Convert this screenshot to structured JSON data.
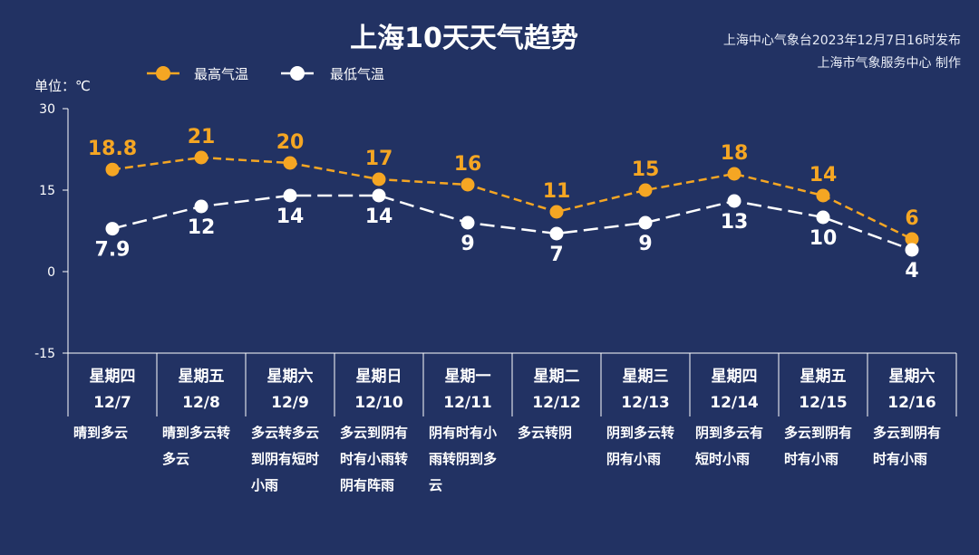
{
  "title": "上海10天天气趋势",
  "publisher_line1": "上海中心气象台2023年12月7日16时发布",
  "publisher_line2": "上海市气象服务中心 制作",
  "unit_label": "单位：℃",
  "colors": {
    "background": "#223263",
    "high": "#f5a623",
    "low": "#ffffff",
    "axis": "#ffffff"
  },
  "chart_data": {
    "type": "line",
    "categories": [
      {
        "weekday": "星期四",
        "date": "12/7",
        "weather": [
          "晴到多云"
        ]
      },
      {
        "weekday": "星期五",
        "date": "12/8",
        "weather": [
          "晴到多云转",
          "多云"
        ]
      },
      {
        "weekday": "星期六",
        "date": "12/9",
        "weather": [
          "多云转多云",
          "到阴有短时",
          "小雨"
        ]
      },
      {
        "weekday": "星期日",
        "date": "12/10",
        "weather": [
          "多云到阴有",
          "时有小雨转",
          "阴有阵雨"
        ]
      },
      {
        "weekday": "星期一",
        "date": "12/11",
        "weather": [
          "阴有时有小",
          "雨转阴到多",
          "云"
        ]
      },
      {
        "weekday": "星期二",
        "date": "12/12",
        "weather": [
          "多云转阴"
        ]
      },
      {
        "weekday": "星期三",
        "date": "12/13",
        "weather": [
          "阴到多云转",
          "阴有小雨"
        ]
      },
      {
        "weekday": "星期四",
        "date": "12/14",
        "weather": [
          "阴到多云有",
          "短时小雨"
        ]
      },
      {
        "weekday": "星期五",
        "date": "12/15",
        "weather": [
          "多云到阴有",
          "时有小雨"
        ]
      },
      {
        "weekday": "星期六",
        "date": "12/16",
        "weather": [
          "多云到阴有",
          "时有小雨"
        ]
      }
    ],
    "series": [
      {
        "name": "最高气温",
        "values": [
          18.8,
          21,
          20,
          17,
          16,
          11,
          15,
          18,
          14,
          6
        ],
        "labels": [
          "18.8",
          "21",
          "20",
          "17",
          "16",
          "11",
          "15",
          "18",
          "14",
          "6"
        ]
      },
      {
        "name": "最低气温",
        "values": [
          7.9,
          12,
          14,
          14,
          9,
          7,
          9,
          13,
          10,
          4
        ],
        "labels": [
          "7.9",
          "12",
          "14",
          "14",
          "9",
          "7",
          "9",
          "13",
          "10",
          "4"
        ]
      }
    ],
    "yticks": [
      30,
      15,
      0,
      -15
    ],
    "ylim": [
      -15,
      30
    ],
    "legend_position": "top-left",
    "grid": false
  }
}
